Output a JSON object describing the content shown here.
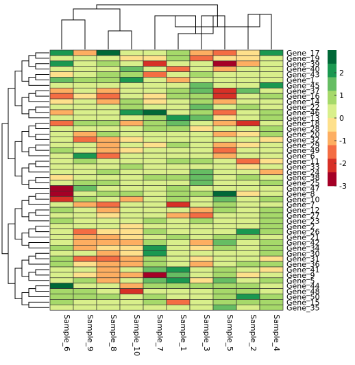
{
  "chart_data": {
    "type": "heatmap",
    "title": "",
    "columns": [
      "Sample_6",
      "Sample_9",
      "Sample_8",
      "Sample_10",
      "Sample_7",
      "Sample_1",
      "Sample_3",
      "Sample_5",
      "Sample_2",
      "Sample_4"
    ],
    "rows": [
      "Gene_17",
      "Gene_19",
      "Gene_39",
      "Gene_40",
      "Gene_43",
      "Gene_1",
      "Gene_45",
      "Gene_37",
      "Gene_16",
      "Gene_14",
      "Gene_22",
      "Gene_46",
      "Gene_13",
      "Gene_18",
      "Gene_28",
      "Gene_20",
      "Gene_32",
      "Gene_29",
      "Gene_49",
      "Gene_6",
      "Gene_11",
      "Gene_33",
      "Gene_24",
      "Gene_38",
      "Gene_25",
      "Gene_47",
      "Gene_8",
      "Gene_10",
      "Gene_7",
      "Gene_12",
      "Gene_27",
      "Gene_23",
      "Gene_2",
      "Gene_26",
      "Gene_21",
      "Gene_42",
      "Gene_34",
      "Gene_30",
      "Gene_31",
      "Gene_36",
      "Gene_41",
      "Gene_9",
      "Gene_5",
      "Gene_44",
      "Gene_48",
      "Gene_50",
      "Gene_15",
      "Gene_35"
    ],
    "values": [
      [
        2.0,
        -1.0,
        2.5,
        0.5,
        0.0,
        1.0,
        -1.0,
        -1.5,
        -0.5,
        2.0
      ],
      [
        0.5,
        0.0,
        0.5,
        -0.5,
        -0.5,
        1.0,
        -1.5,
        -0.5,
        -0.5,
        0.5
      ],
      [
        2.0,
        0.5,
        1.0,
        0.5,
        -2.0,
        0.5,
        0.5,
        -2.5,
        -1.0,
        0.5
      ],
      [
        0.5,
        0.0,
        0.5,
        1.5,
        0.0,
        -1.5,
        0.5,
        -1.0,
        0.5,
        0.0
      ],
      [
        -0.5,
        0.5,
        1.0,
        1.0,
        -1.5,
        0.5,
        1.0,
        0.5,
        0.0,
        0.5
      ],
      [
        1.5,
        1.0,
        1.0,
        2.0,
        0.5,
        -1.0,
        0.0,
        0.5,
        0.5,
        0.5
      ],
      [
        0.0,
        0.5,
        0.5,
        0.5,
        0.0,
        0.5,
        1.5,
        0.0,
        0.5,
        2.0
      ],
      [
        -1.0,
        0.5,
        -1.0,
        0.5,
        0.0,
        1.0,
        1.5,
        -2.0,
        1.5,
        0.5
      ],
      [
        -1.5,
        -0.5,
        -1.5,
        0.5,
        -0.5,
        1.0,
        1.0,
        -2.0,
        0.5,
        1.0
      ],
      [
        -0.5,
        0.0,
        -1.0,
        1.0,
        -0.5,
        0.5,
        1.0,
        -1.0,
        0.5,
        0.0
      ],
      [
        0.0,
        0.5,
        0.5,
        1.0,
        0.5,
        0.5,
        1.5,
        0.0,
        1.0,
        0.5
      ],
      [
        -1.0,
        0.0,
        0.5,
        2.0,
        2.5,
        0.0,
        1.0,
        -1.5,
        0.0,
        1.0
      ],
      [
        0.0,
        0.5,
        0.5,
        0.5,
        1.0,
        2.0,
        1.5,
        -0.5,
        0.5,
        1.0
      ],
      [
        -1.5,
        1.0,
        1.0,
        -1.0,
        1.0,
        1.5,
        0.0,
        -1.0,
        -2.0,
        0.5
      ],
      [
        0.5,
        0.0,
        0.5,
        0.0,
        1.0,
        1.0,
        -0.5,
        0.0,
        0.0,
        1.0
      ],
      [
        0.5,
        -1.0,
        1.0,
        0.0,
        0.5,
        0.0,
        0.5,
        -1.0,
        -0.5,
        1.0
      ],
      [
        0.0,
        -1.5,
        -1.0,
        -0.5,
        0.0,
        0.5,
        0.0,
        0.5,
        0.0,
        -0.5
      ],
      [
        0.0,
        0.0,
        -1.0,
        0.0,
        -0.5,
        1.0,
        0.0,
        -1.0,
        -0.5,
        0.5
      ],
      [
        1.0,
        0.5,
        -1.0,
        -0.5,
        0.0,
        0.5,
        0.5,
        -1.5,
        0.0,
        0.0
      ],
      [
        0.5,
        2.0,
        -1.5,
        0.5,
        0.5,
        0.5,
        0.5,
        -1.0,
        0.5,
        0.0
      ],
      [
        0.5,
        1.0,
        0.5,
        0.5,
        0.5,
        1.0,
        1.0,
        0.0,
        -1.5,
        -0.5
      ],
      [
        0.0,
        0.5,
        0.0,
        1.0,
        0.5,
        0.5,
        0.5,
        0.5,
        -0.5,
        0.5
      ],
      [
        0.5,
        0.5,
        1.0,
        0.5,
        0.0,
        0.0,
        1.5,
        0.5,
        0.0,
        -1.0
      ],
      [
        -0.5,
        0.5,
        0.5,
        0.5,
        1.0,
        1.0,
        1.5,
        0.5,
        1.0,
        0.5
      ],
      [
        0.5,
        1.0,
        1.0,
        0.5,
        0.5,
        0.5,
        1.5,
        0.0,
        0.5,
        1.0
      ],
      [
        -2.5,
        1.5,
        0.5,
        0.5,
        0.0,
        1.0,
        0.0,
        0.5,
        0.0,
        0.5
      ],
      [
        -2.5,
        0.0,
        1.0,
        1.0,
        0.5,
        1.0,
        1.0,
        2.5,
        -0.5,
        0.5
      ],
      [
        -2.0,
        1.0,
        0.5,
        -1.0,
        0.5,
        1.0,
        0.5,
        1.5,
        0.5,
        1.0
      ],
      [
        0.5,
        -1.0,
        -1.5,
        0.5,
        0.5,
        -2.0,
        0.0,
        1.0,
        0.5,
        0.5
      ],
      [
        1.0,
        0.5,
        -1.0,
        0.5,
        0.5,
        0.5,
        -1.0,
        1.0,
        0.5,
        1.0
      ],
      [
        0.5,
        0.0,
        -0.5,
        0.0,
        0.5,
        -1.0,
        -1.5,
        0.5,
        0.5,
        1.0
      ],
      [
        1.0,
        0.5,
        0.5,
        0.5,
        1.0,
        0.5,
        1.0,
        0.0,
        0.5,
        1.0
      ],
      [
        0.0,
        0.5,
        0.0,
        -0.5,
        0.5,
        0.5,
        0.0,
        0.5,
        0.5,
        1.0
      ],
      [
        0.5,
        -1.5,
        -0.5,
        -0.5,
        1.0,
        0.0,
        0.5,
        0.5,
        2.0,
        1.0
      ],
      [
        0.5,
        -1.0,
        -1.0,
        -0.5,
        0.5,
        1.0,
        0.5,
        1.0,
        1.0,
        0.5
      ],
      [
        0.5,
        -1.0,
        -1.0,
        -1.0,
        1.0,
        0.5,
        -1.0,
        1.5,
        0.5,
        1.0
      ],
      [
        1.0,
        -1.0,
        -0.5,
        -0.5,
        2.0,
        0.5,
        -0.5,
        1.0,
        0.5,
        1.0
      ],
      [
        0.5,
        0.5,
        -1.0,
        -0.5,
        2.0,
        0.5,
        0.5,
        0.5,
        0.5,
        1.0
      ],
      [
        1.0,
        -1.5,
        -1.5,
        -1.0,
        1.0,
        0.5,
        -0.5,
        0.5,
        0.0,
        -0.5
      ],
      [
        1.0,
        -0.5,
        -1.0,
        -1.0,
        1.0,
        0.5,
        -1.0,
        0.5,
        1.0,
        1.0
      ],
      [
        0.5,
        0.0,
        -1.0,
        0.0,
        1.5,
        2.0,
        0.5,
        1.0,
        0.5,
        -0.5
      ],
      [
        0.5,
        -0.5,
        -1.0,
        -1.0,
        -2.5,
        1.5,
        0.5,
        1.0,
        -0.5,
        0.0
      ],
      [
        0.5,
        1.0,
        -1.0,
        0.0,
        1.5,
        2.0,
        -0.5,
        1.5,
        0.5,
        1.0
      ],
      [
        2.5,
        0.5,
        0.5,
        -1.0,
        1.0,
        1.0,
        1.0,
        1.0,
        1.0,
        0.5
      ],
      [
        1.0,
        1.0,
        0.5,
        -2.0,
        0.5,
        0.5,
        0.0,
        1.0,
        1.0,
        0.5
      ],
      [
        1.0,
        1.0,
        1.0,
        0.5,
        1.0,
        0.5,
        0.5,
        1.0,
        2.0,
        1.0
      ],
      [
        1.0,
        0.5,
        0.5,
        0.5,
        1.0,
        -1.5,
        0.5,
        1.0,
        1.0,
        1.0
      ],
      [
        0.5,
        0.5,
        0.5,
        0.5,
        0.5,
        0.5,
        0.5,
        1.5,
        0.5,
        1.0
      ]
    ],
    "color_scale": {
      "min": -3,
      "max": 3,
      "colors": [
        "#a50026",
        "#d73027",
        "#f46d43",
        "#fdae61",
        "#fee08b",
        "#d9ef8b",
        "#a6d96a",
        "#66bd63",
        "#1a9850",
        "#006837"
      ]
    },
    "legend": {
      "ticks": [
        "2",
        "1",
        "0",
        "-1",
        "-2",
        "-3"
      ],
      "tick_values": [
        2,
        1,
        0,
        -1,
        -2,
        -3
      ],
      "position": "right"
    },
    "column_dendrogram": true,
    "row_dendrogram": true,
    "grid": false
  }
}
